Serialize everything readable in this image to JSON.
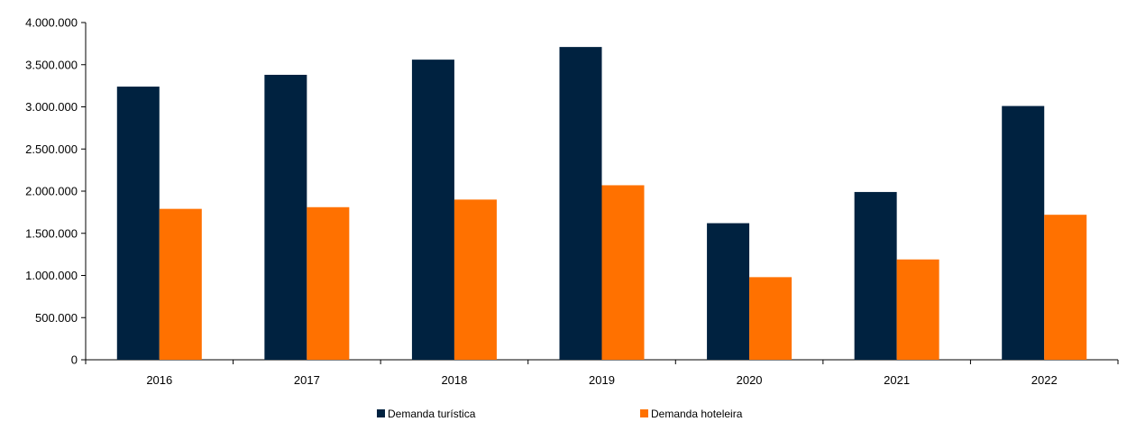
{
  "chart_data": {
    "type": "bar",
    "categories": [
      "2016",
      "2017",
      "2018",
      "2019",
      "2020",
      "2021",
      "2022"
    ],
    "series": [
      {
        "name": "Demanda turística",
        "color": "#002240",
        "values": [
          3240000,
          3380000,
          3560000,
          3710000,
          1620000,
          1990000,
          3010000
        ]
      },
      {
        "name": "Demanda hoteleira",
        "color": "#FF7100",
        "values": [
          1790000,
          1810000,
          1900000,
          2070000,
          980000,
          1190000,
          1720000
        ]
      }
    ],
    "ylim": [
      0,
      4000000
    ],
    "yticks": [
      0,
      500000,
      1000000,
      1500000,
      2000000,
      2500000,
      3000000,
      3500000,
      4000000
    ],
    "ytick_labels": [
      "0",
      "500.000",
      "1.000.000",
      "1.500.000",
      "2.000.000",
      "2.500.000",
      "3.000.000",
      "3.500.000",
      "4.000.000"
    ],
    "legend_position": "bottom",
    "grid": false
  }
}
